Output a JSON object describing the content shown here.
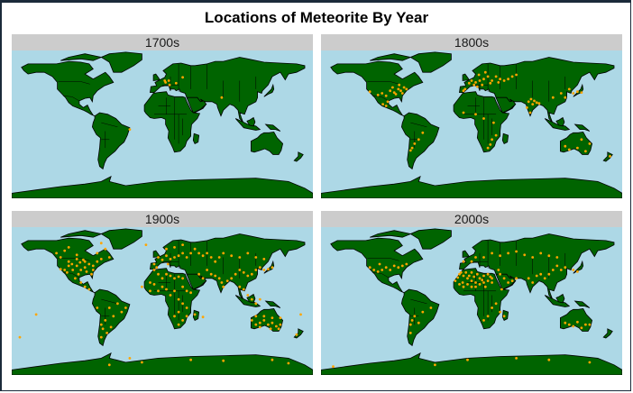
{
  "title": "Locations of Meteorite By Year",
  "colors": {
    "ocean": "#add8e6",
    "land": "#006400",
    "border": "#000000",
    "point": "#ffa500",
    "strip": "#cccccc"
  },
  "panels": [
    {
      "label": "1700s"
    },
    {
      "label": "1800s"
    },
    {
      "label": "1900s"
    },
    {
      "label": "2000s"
    }
  ],
  "map_data": {
    "type": "faceted-point-map",
    "facets": [
      {
        "label": "1700s",
        "points": [
          [
            9,
            48
          ],
          [
            13,
            50
          ],
          [
            14,
            45
          ],
          [
            22,
            47
          ],
          [
            30,
            54
          ],
          [
            8,
            50
          ],
          [
            -35,
            -8
          ],
          [
            78,
            30
          ]
        ]
      },
      {
        "label": "1800s",
        "points": [
          [
            -85,
            40
          ],
          [
            -82,
            38
          ],
          [
            -90,
            36
          ],
          [
            -78,
            42
          ],
          [
            -95,
            38
          ],
          [
            -88,
            34
          ],
          [
            -75,
            40
          ],
          [
            -100,
            32
          ],
          [
            -80,
            35
          ],
          [
            -92,
            42
          ],
          [
            -105,
            35
          ],
          [
            -110,
            33
          ],
          [
            -120,
            37
          ],
          [
            -84,
            45
          ],
          [
            -65,
            -25
          ],
          [
            -68,
            -30
          ],
          [
            -60,
            -20
          ],
          [
            -55,
            -12
          ],
          [
            -100,
            20
          ],
          [
            -98,
            25
          ],
          [
            -104,
            22
          ],
          [
            -70,
            -33
          ],
          [
            2,
            47
          ],
          [
            5,
            50
          ],
          [
            10,
            48
          ],
          [
            15,
            50
          ],
          [
            20,
            52
          ],
          [
            25,
            55
          ],
          [
            30,
            50
          ],
          [
            35,
            55
          ],
          [
            40,
            52
          ],
          [
            45,
            50
          ],
          [
            8,
            45
          ],
          [
            12,
            43
          ],
          [
            -3,
            40
          ],
          [
            -5,
            38
          ],
          [
            18,
            45
          ],
          [
            28,
            47
          ],
          [
            22,
            60
          ],
          [
            14,
            57
          ],
          [
            38,
            48
          ],
          [
            50,
            52
          ],
          [
            55,
            55
          ],
          [
            60,
            57
          ],
          [
            75,
            25
          ],
          [
            78,
            28
          ],
          [
            80,
            22
          ],
          [
            82,
            26
          ],
          [
            85,
            24
          ],
          [
            88,
            23
          ],
          [
            77,
            12
          ],
          [
            73,
            18
          ],
          [
            115,
            35
          ],
          [
            120,
            30
          ],
          [
            125,
            40
          ],
          [
            130,
            35
          ],
          [
            135,
            37
          ],
          [
            140,
            36
          ],
          [
            105,
            30
          ],
          [
            -5,
            12
          ],
          [
            10,
            10
          ],
          [
            30,
            -20
          ],
          [
            28,
            -26
          ],
          [
            25,
            -30
          ],
          [
            32,
            0
          ],
          [
            20,
            5
          ],
          [
            35,
            -15
          ],
          [
            120,
            -28
          ],
          [
            135,
            -30
          ],
          [
            145,
            -34
          ],
          [
            150,
            -25
          ],
          [
            140,
            -20
          ],
          [
            125,
            -32
          ],
          [
            175,
            -40
          ]
        ]
      },
      {
        "label": "1900s",
        "points": [
          [
            -120,
            50
          ],
          [
            -110,
            45
          ],
          [
            -100,
            40
          ],
          [
            -95,
            35
          ],
          [
            -90,
            38
          ],
          [
            -85,
            42
          ],
          [
            -80,
            35
          ],
          [
            -75,
            45
          ],
          [
            -105,
            35
          ],
          [
            -115,
            35
          ],
          [
            -110,
            40
          ],
          [
            -100,
            48
          ],
          [
            -90,
            45
          ],
          [
            -80,
            40
          ],
          [
            -98,
            30
          ],
          [
            -102,
            25
          ],
          [
            -95,
            20
          ],
          [
            -90,
            15
          ],
          [
            -85,
            12
          ],
          [
            -120,
            36
          ],
          [
            -112,
            32
          ],
          [
            -106,
            42
          ],
          [
            -96,
            44
          ],
          [
            -88,
            33
          ],
          [
            -82,
            30
          ],
          [
            -92,
            47
          ],
          [
            -100,
            53
          ],
          [
            -125,
            55
          ],
          [
            -115,
            58
          ],
          [
            -75,
            55
          ],
          [
            -70,
            48
          ],
          [
            -60,
            50
          ],
          [
            -65,
            60
          ],
          [
            -70,
            67
          ],
          [
            -110,
            62
          ],
          [
            -60,
            -10
          ],
          [
            -55,
            -20
          ],
          [
            -65,
            -25
          ],
          [
            -70,
            -30
          ],
          [
            -68,
            -35
          ],
          [
            -63,
            -40
          ],
          [
            -58,
            -33
          ],
          [
            -45,
            -15
          ],
          [
            -40,
            -10
          ],
          [
            -50,
            -5
          ],
          [
            -75,
            -10
          ],
          [
            -70,
            -45
          ],
          [
            -5,
            35
          ],
          [
            0,
            30
          ],
          [
            5,
            25
          ],
          [
            10,
            30
          ],
          [
            15,
            28
          ],
          [
            20,
            25
          ],
          [
            25,
            27
          ],
          [
            30,
            25
          ],
          [
            -10,
            20
          ],
          [
            -5,
            18
          ],
          [
            5,
            15
          ],
          [
            10,
            12
          ],
          [
            20,
            10
          ],
          [
            30,
            15
          ],
          [
            35,
            10
          ],
          [
            40,
            8
          ],
          [
            -10,
            10
          ],
          [
            0,
            10
          ],
          [
            15,
            5
          ],
          [
            25,
            0
          ],
          [
            30,
            -5
          ],
          [
            35,
            -10
          ],
          [
            25,
            -15
          ],
          [
            20,
            -20
          ],
          [
            30,
            -25
          ],
          [
            25,
            -30
          ],
          [
            35,
            -20
          ],
          [
            45,
            -18
          ],
          [
            0,
            50
          ],
          [
            5,
            47
          ],
          [
            10,
            52
          ],
          [
            15,
            48
          ],
          [
            20,
            50
          ],
          [
            25,
            52
          ],
          [
            30,
            55
          ],
          [
            35,
            50
          ],
          [
            40,
            55
          ],
          [
            45,
            60
          ],
          [
            50,
            55
          ],
          [
            55,
            52
          ],
          [
            60,
            55
          ],
          [
            65,
            50
          ],
          [
            70,
            45
          ],
          [
            75,
            50
          ],
          [
            80,
            55
          ],
          [
            90,
            52
          ],
          [
            100,
            50
          ],
          [
            110,
            55
          ],
          [
            120,
            50
          ],
          [
            130,
            48
          ],
          [
            10,
            60
          ],
          [
            20,
            62
          ],
          [
            30,
            65
          ],
          [
            -5,
            42
          ],
          [
            -2,
            38
          ],
          [
            12,
            42
          ],
          [
            50,
            30
          ],
          [
            55,
            25
          ],
          [
            60,
            35
          ],
          [
            65,
            30
          ],
          [
            70,
            28
          ],
          [
            75,
            25
          ],
          [
            78,
            20
          ],
          [
            80,
            15
          ],
          [
            85,
            22
          ],
          [
            90,
            25
          ],
          [
            95,
            30
          ],
          [
            100,
            35
          ],
          [
            105,
            32
          ],
          [
            110,
            28
          ],
          [
            115,
            30
          ],
          [
            120,
            35
          ],
          [
            125,
            38
          ],
          [
            130,
            35
          ],
          [
            135,
            36
          ],
          [
            140,
            38
          ],
          [
            100,
            15
          ],
          [
            105,
            12
          ],
          [
            110,
            5
          ],
          [
            115,
            0
          ],
          [
            120,
            -5
          ],
          [
            125,
            0
          ],
          [
            115,
            -25
          ],
          [
            120,
            -30
          ],
          [
            125,
            -28
          ],
          [
            130,
            -25
          ],
          [
            135,
            -30
          ],
          [
            140,
            -28
          ],
          [
            145,
            -32
          ],
          [
            150,
            -30
          ],
          [
            120,
            -20
          ],
          [
            130,
            -20
          ],
          [
            140,
            -22
          ],
          [
            148,
            -35
          ],
          [
            138,
            -35
          ],
          [
            125,
            -33
          ],
          [
            150,
            -22
          ],
          [
            170,
            -42
          ],
          [
            -60,
            -78
          ],
          [
            -20,
            -75
          ],
          [
            40,
            -72
          ],
          [
            80,
            -73
          ],
          [
            140,
            -72
          ],
          [
            160,
            -76
          ],
          [
            -35,
            -70
          ],
          [
            -170,
            -45
          ],
          [
            -150,
            -18
          ],
          [
            175,
            -18
          ],
          [
            -15,
            65
          ],
          [
            -20,
            15
          ],
          [
            55,
            -21
          ]
        ]
      },
      {
        "label": "2000s",
        "points": [
          [
            -115,
            35
          ],
          [
            -110,
            33
          ],
          [
            -105,
            35
          ],
          [
            -100,
            38
          ],
          [
            -95,
            35
          ],
          [
            -90,
            40
          ],
          [
            -85,
            38
          ],
          [
            -120,
            38
          ],
          [
            -80,
            40
          ],
          [
            -108,
            42
          ],
          [
            -75,
            42
          ],
          [
            -70,
            -30
          ],
          [
            -68,
            -25
          ],
          [
            -65,
            -20
          ],
          [
            -60,
            -28
          ],
          [
            -55,
            -15
          ],
          [
            -45,
            -10
          ],
          [
            -70,
            -40
          ],
          [
            -10,
            30
          ],
          [
            -5,
            28
          ],
          [
            0,
            25
          ],
          [
            5,
            22
          ],
          [
            10,
            20
          ],
          [
            15,
            25
          ],
          [
            20,
            28
          ],
          [
            25,
            30
          ],
          [
            30,
            25
          ],
          [
            -15,
            22
          ],
          [
            -10,
            18
          ],
          [
            -5,
            15
          ],
          [
            0,
            18
          ],
          [
            5,
            15
          ],
          [
            10,
            15
          ],
          [
            15,
            18
          ],
          [
            20,
            20
          ],
          [
            25,
            22
          ],
          [
            30,
            20
          ],
          [
            -8,
            32
          ],
          [
            -2,
            32
          ],
          [
            5,
            32
          ],
          [
            12,
            30
          ],
          [
            -12,
            26
          ],
          [
            8,
            27
          ],
          [
            18,
            23
          ],
          [
            28,
            27
          ],
          [
            -6,
            20
          ],
          [
            2,
            28
          ],
          [
            22,
            15
          ],
          [
            35,
            -5
          ],
          [
            30,
            -10
          ],
          [
            25,
            -20
          ],
          [
            20,
            -25
          ],
          [
            40,
            -15
          ],
          [
            45,
            -20
          ],
          [
            50,
            20
          ],
          [
            55,
            22
          ],
          [
            60,
            25
          ],
          [
            45,
            25
          ],
          [
            40,
            30
          ],
          [
            38,
            35
          ],
          [
            42,
            12
          ],
          [
            10,
            50
          ],
          [
            20,
            50
          ],
          [
            30,
            55
          ],
          [
            40,
            52
          ],
          [
            50,
            55
          ],
          [
            60,
            57
          ],
          [
            70,
            53
          ],
          [
            80,
            50
          ],
          [
            90,
            55
          ],
          [
            100,
            52
          ],
          [
            110,
            50
          ],
          [
            -5,
            45
          ],
          [
            5,
            45
          ],
          [
            75,
            25
          ],
          [
            80,
            20
          ],
          [
            85,
            28
          ],
          [
            90,
            30
          ],
          [
            95,
            25
          ],
          [
            100,
            30
          ],
          [
            105,
            35
          ],
          [
            110,
            40
          ],
          [
            115,
            35
          ],
          [
            120,
            38
          ],
          [
            130,
            35
          ],
          [
            135,
            33
          ],
          [
            120,
            -28
          ],
          [
            125,
            -30
          ],
          [
            130,
            -32
          ],
          [
            135,
            -27
          ],
          [
            140,
            -34
          ],
          [
            145,
            -30
          ],
          [
            150,
            -30
          ],
          [
            -40,
            -78
          ],
          [
            0,
            -72
          ],
          [
            60,
            -70
          ],
          [
            100,
            -72
          ],
          [
            150,
            -75
          ],
          [
            -165,
            -80
          ]
        ]
      }
    ]
  }
}
